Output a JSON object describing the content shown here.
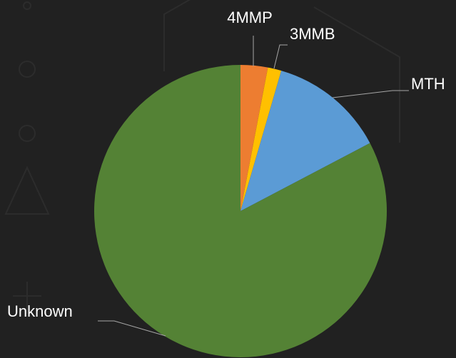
{
  "chart_data": {
    "type": "pie",
    "categories": [
      "4MMP",
      "3MMB",
      "MTH",
      "Unknown"
    ],
    "values": [
      3,
      1.5,
      12.8,
      82.7
    ],
    "colors": [
      "#ed7d31",
      "#ffc000",
      "#5b9bd5",
      "#548235"
    ]
  }
}
